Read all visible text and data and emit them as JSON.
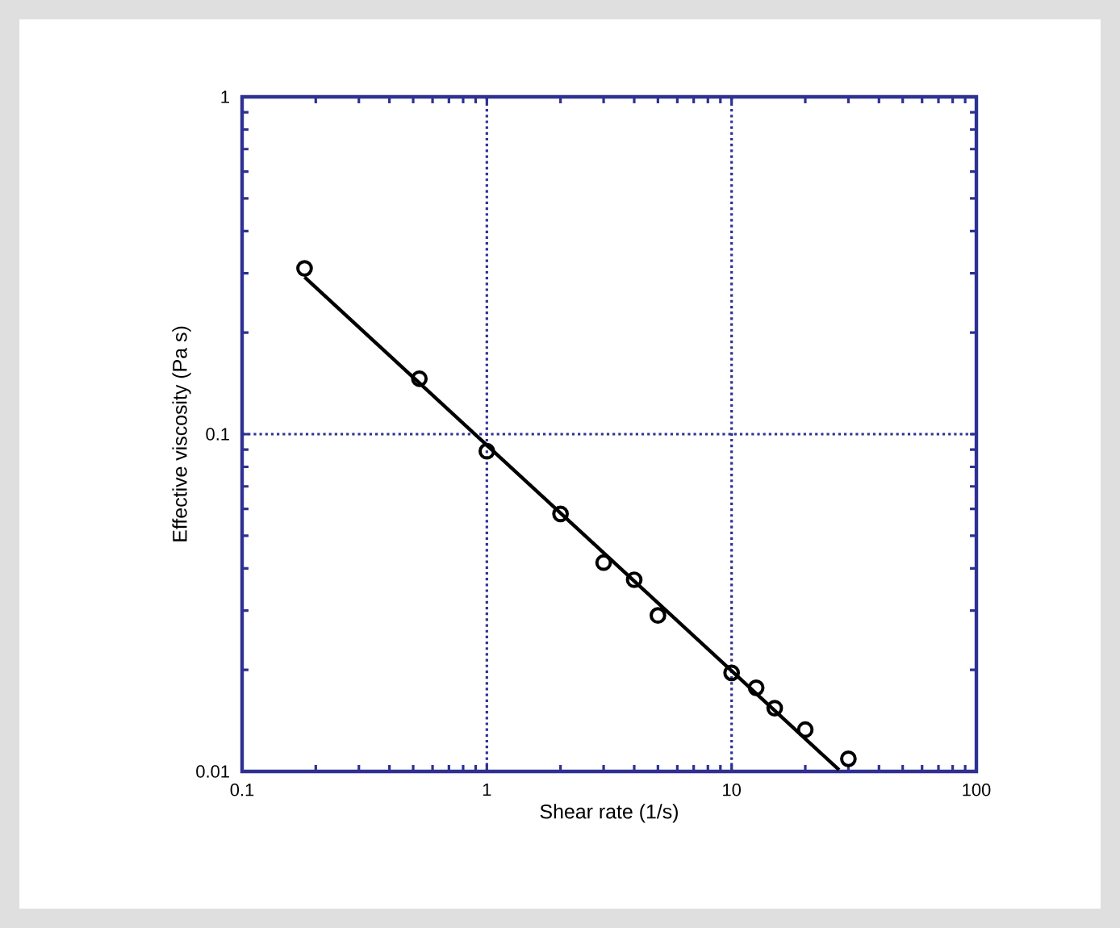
{
  "chart_data": {
    "type": "scatter",
    "xlabel": "Shear rate (1/s)",
    "ylabel": "Effective viscosity (Pa s)",
    "log": "xy",
    "grid": true,
    "xlim": [
      0.1,
      100
    ],
    "xticks": [
      0.1,
      1,
      10,
      100
    ],
    "ylim": [
      0.01,
      1
    ],
    "yticks": [
      0.01,
      0.1,
      1
    ],
    "series": [
      {
        "color": "#000000",
        "marker": "circle",
        "x": [
          0.18,
          0.53,
          1,
          2,
          3,
          4,
          5,
          10,
          12.6,
          15,
          20,
          30
        ],
        "values": [
          0.31,
          0.146,
          0.089,
          0.058,
          0.0416,
          0.037,
          0.029,
          0.0196,
          0.0177,
          0.0154,
          0.0133,
          0.0109
        ]
      },
      {
        "type": "line",
        "color": "#000000",
        "marker": "none",
        "line_style": "solid",
        "x": [
          0.18,
          27.5
        ],
        "values": [
          0.292,
          0.0101
        ]
      }
    ]
  }
}
